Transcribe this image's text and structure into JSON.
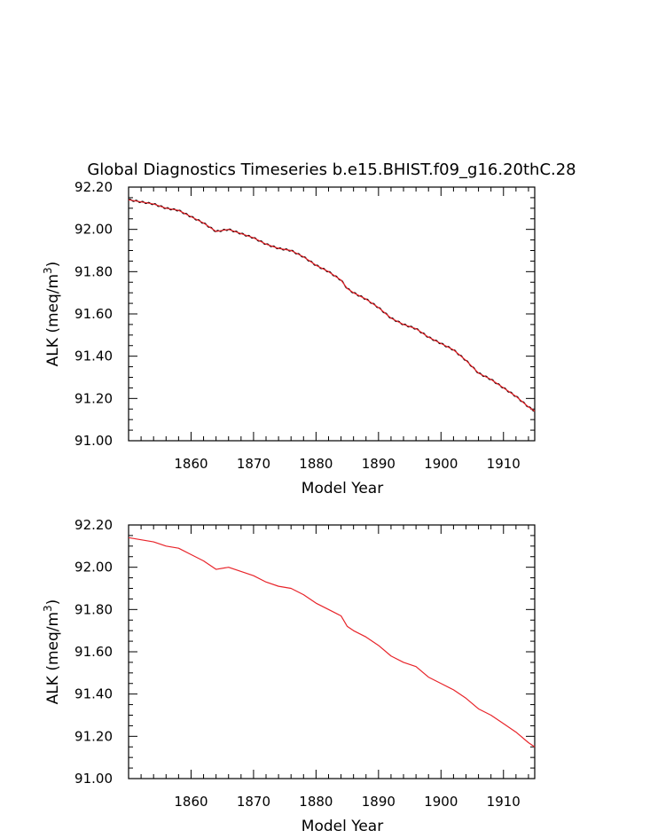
{
  "title": "Global Diagnostics Timeseries b.e15.BHIST.f09_g16.20thC.28",
  "chart_data": [
    {
      "type": "line",
      "xlabel": "Model Year",
      "ylabel": "ALK (meq/m",
      "ylabel_sup": "3",
      "ylabel_end": ")",
      "xlim": [
        1850,
        1915
      ],
      "ylim": [
        91.0,
        92.2
      ],
      "x_ticks": [
        1860,
        1870,
        1880,
        1890,
        1900,
        1910
      ],
      "x_tick_labels": [
        "1860",
        "1870",
        "1880",
        "1890",
        "1900",
        "1910"
      ],
      "y_ticks": [
        91.0,
        91.2,
        91.4,
        91.6,
        91.8,
        92.0,
        92.2
      ],
      "y_tick_labels": [
        "91.00",
        "91.20",
        "91.40",
        "91.60",
        "91.80",
        "92.00",
        "92.20"
      ],
      "grid": false,
      "series": [
        {
          "color": "#000000",
          "style": "monthly",
          "x": [
            1850,
            1852,
            1854,
            1856,
            1858,
            1860,
            1862,
            1864,
            1866,
            1868,
            1870,
            1872,
            1874,
            1876,
            1878,
            1880,
            1882,
            1884,
            1885,
            1886,
            1888,
            1890,
            1892,
            1894,
            1896,
            1898,
            1900,
            1902,
            1904,
            1906,
            1908,
            1910,
            1912,
            1914,
            1915
          ],
          "y": [
            92.14,
            92.13,
            92.12,
            92.1,
            92.09,
            92.06,
            92.03,
            91.99,
            92.0,
            91.98,
            91.96,
            91.93,
            91.91,
            91.9,
            91.87,
            91.83,
            91.8,
            91.76,
            91.72,
            91.7,
            91.67,
            91.63,
            91.58,
            91.55,
            91.53,
            91.49,
            91.46,
            91.43,
            91.38,
            91.32,
            91.29,
            91.25,
            91.21,
            91.16,
            91.14
          ]
        },
        {
          "color": "#e8242a",
          "style": "annual",
          "x": [
            1850,
            1852,
            1854,
            1856,
            1858,
            1860,
            1862,
            1864,
            1866,
            1868,
            1870,
            1872,
            1874,
            1876,
            1878,
            1880,
            1882,
            1884,
            1885,
            1886,
            1888,
            1890,
            1892,
            1894,
            1896,
            1898,
            1900,
            1902,
            1904,
            1906,
            1908,
            1910,
            1912,
            1914,
            1915
          ],
          "y": [
            92.14,
            92.13,
            92.12,
            92.1,
            92.09,
            92.06,
            92.03,
            91.99,
            92.0,
            91.98,
            91.96,
            91.93,
            91.91,
            91.9,
            91.87,
            91.83,
            91.8,
            91.76,
            91.72,
            91.7,
            91.67,
            91.63,
            91.58,
            91.55,
            91.53,
            91.49,
            91.46,
            91.43,
            91.38,
            91.32,
            91.29,
            91.25,
            91.21,
            91.16,
            91.14
          ]
        }
      ]
    },
    {
      "type": "line",
      "xlabel": "Model Year",
      "ylabel": "ALK (meq/m",
      "ylabel_sup": "3",
      "ylabel_end": ")",
      "xlim": [
        1850,
        1915
      ],
      "ylim": [
        91.0,
        92.2
      ],
      "x_ticks": [
        1860,
        1870,
        1880,
        1890,
        1900,
        1910
      ],
      "x_tick_labels": [
        "1860",
        "1870",
        "1880",
        "1890",
        "1900",
        "1910"
      ],
      "y_ticks": [
        91.0,
        91.2,
        91.4,
        91.6,
        91.8,
        92.0,
        92.2
      ],
      "y_tick_labels": [
        "91.00",
        "91.20",
        "91.40",
        "91.60",
        "91.80",
        "92.00",
        "92.20"
      ],
      "grid": false,
      "series": [
        {
          "color": "#e8242a",
          "style": "annual",
          "x": [
            1850,
            1852,
            1854,
            1856,
            1858,
            1860,
            1862,
            1864,
            1866,
            1868,
            1870,
            1872,
            1874,
            1876,
            1878,
            1880,
            1882,
            1884,
            1885,
            1886,
            1888,
            1890,
            1892,
            1894,
            1896,
            1898,
            1900,
            1902,
            1904,
            1906,
            1908,
            1910,
            1912,
            1914,
            1915
          ],
          "y": [
            92.14,
            92.13,
            92.12,
            92.1,
            92.09,
            92.06,
            92.03,
            91.99,
            92.0,
            91.98,
            91.96,
            91.93,
            91.91,
            91.9,
            91.87,
            91.83,
            91.8,
            91.77,
            91.72,
            91.7,
            91.67,
            91.63,
            91.58,
            91.55,
            91.53,
            91.48,
            91.45,
            91.42,
            91.38,
            91.33,
            91.3,
            91.26,
            91.22,
            91.17,
            91.15
          ]
        }
      ]
    }
  ]
}
